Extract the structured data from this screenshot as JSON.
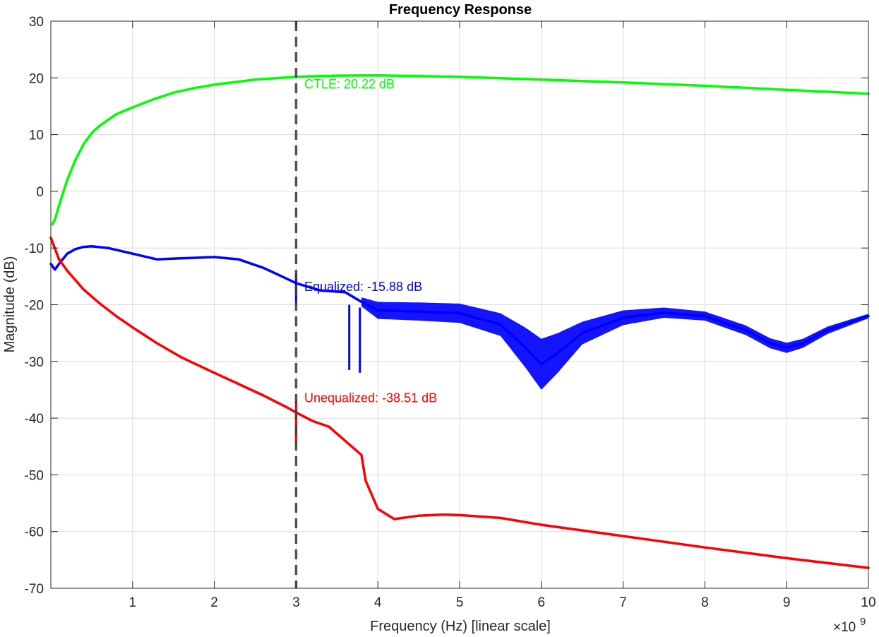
{
  "chart_data": {
    "type": "line",
    "title": "Frequency Response",
    "xlabel": "Frequency (Hz) [linear scale]",
    "ylabel": "Magnitude (dB)",
    "x_exponent_base": "×10",
    "x_exponent_power": "9",
    "xlim": [
      0,
      10
    ],
    "ylim": [
      -70,
      30
    ],
    "x_ticks": [
      1,
      2,
      3,
      4,
      5,
      6,
      7,
      8,
      9,
      10
    ],
    "x_tick_labels": [
      "1",
      "2",
      "3",
      "4",
      "5",
      "6",
      "7",
      "8",
      "9",
      "10"
    ],
    "y_ticks": [
      30,
      20,
      10,
      0,
      -10,
      -20,
      -30,
      -40,
      -50,
      -60,
      -70
    ],
    "y_tick_labels": [
      "30",
      "20",
      "10",
      "0",
      "-10",
      "-20",
      "-30",
      "-40",
      "-50",
      "-60",
      "-70"
    ],
    "grid": true,
    "reference_line": {
      "x": 3,
      "color": "#404040",
      "style": "dashed"
    },
    "series": [
      {
        "key": "ctle",
        "color": "#00ff00",
        "x": [
          0.02,
          0.05,
          0.1,
          0.2,
          0.3,
          0.4,
          0.5,
          0.6,
          0.8,
          1.0,
          1.25,
          1.5,
          1.75,
          2.0,
          2.5,
          3.0,
          3.5,
          4.0,
          5.0,
          6.0,
          7.0,
          8.0,
          9.0,
          10.0
        ],
        "y": [
          -5.8,
          -5.0,
          -2.5,
          2.0,
          5.5,
          8.3,
          10.3,
          11.6,
          13.6,
          14.8,
          16.2,
          17.4,
          18.2,
          18.8,
          19.7,
          20.2,
          20.4,
          20.45,
          20.2,
          19.7,
          19.2,
          18.6,
          17.9,
          17.2
        ]
      },
      {
        "key": "equalized",
        "color": "#0000ff",
        "x": [
          0.0,
          0.05,
          0.1,
          0.2,
          0.3,
          0.4,
          0.5,
          0.7,
          1.0,
          1.3,
          1.6,
          2.0,
          2.3,
          2.6,
          2.9,
          3.0,
          3.3,
          3.6,
          3.8,
          4.0,
          4.5,
          5.0,
          5.5,
          5.8,
          6.0,
          6.2,
          6.5,
          7.0,
          7.5,
          8.0,
          8.5,
          8.8,
          9.0,
          9.2,
          9.5,
          10.0
        ],
        "y": [
          -12.8,
          -13.8,
          -12.8,
          -11.0,
          -10.2,
          -9.8,
          -9.7,
          -10.0,
          -11.0,
          -12.0,
          -11.8,
          -11.6,
          -12.0,
          -13.5,
          -15.5,
          -16.2,
          -17.5,
          -17.8,
          -19.5,
          -21.0,
          -21.2,
          -21.5,
          -23.5,
          -27.5,
          -30.5,
          -28.5,
          -25.0,
          -22.3,
          -21.4,
          -22.0,
          -24.5,
          -26.8,
          -27.6,
          -26.8,
          -24.5,
          -22.0
        ]
      },
      {
        "key": "unequalized",
        "color": "#ff0000",
        "x": [
          0.0,
          0.1,
          0.2,
          0.4,
          0.6,
          0.8,
          1.0,
          1.3,
          1.6,
          2.0,
          2.3,
          2.6,
          2.9,
          3.0,
          3.2,
          3.4,
          3.6,
          3.8,
          3.85,
          4.0,
          4.2,
          4.5,
          4.8,
          5.0,
          5.5,
          6.0,
          7.0,
          8.0,
          9.0,
          10.0
        ],
        "y": [
          -8.2,
          -12.0,
          -14.0,
          -17.3,
          -19.8,
          -22.0,
          -24.0,
          -26.8,
          -29.3,
          -32.0,
          -34.0,
          -36.0,
          -38.2,
          -39.0,
          -40.5,
          -41.5,
          -44.0,
          -46.5,
          -51.0,
          -56.0,
          -57.8,
          -57.2,
          -57.0,
          -57.1,
          -57.6,
          -58.8,
          -60.8,
          -62.8,
          -64.7,
          -66.4
        ]
      }
    ],
    "annotations": [
      {
        "key": "ctle",
        "text": "CTLE: 20.22 dB",
        "x": 3.1,
        "y": 18.2,
        "color": "#00ff00"
      },
      {
        "key": "equalized",
        "text": "Equalized: -15.88 dB",
        "x": 3.1,
        "y": -17.6,
        "color": "#0000ff"
      },
      {
        "key": "unequalized",
        "text": "Unequalized: -38.51 dB",
        "x": 3.1,
        "y": -37.2,
        "color": "#ff0000"
      }
    ],
    "spikes": [
      {
        "key": "equalized",
        "x": 3.0,
        "y_top": -14.5,
        "y_bottom": -19.8
      },
      {
        "key": "equalized",
        "x": 3.65,
        "y_top": -20.0,
        "y_bottom": -31.5
      },
      {
        "key": "equalized",
        "x": 3.78,
        "y_top": -20.5,
        "y_bottom": -32.0
      },
      {
        "key": "unequalized",
        "x": 3.0,
        "y_top": -37.0,
        "y_bottom": -44.5
      }
    ],
    "ripple_band": [
      {
        "x": 3.8,
        "half_width": 0.8
      },
      {
        "x": 4.0,
        "half_width": 1.5
      },
      {
        "x": 4.5,
        "half_width": 1.6
      },
      {
        "x": 5.0,
        "half_width": 1.7
      },
      {
        "x": 5.5,
        "half_width": 2.0
      },
      {
        "x": 6.0,
        "half_width": 4.5
      },
      {
        "x": 6.5,
        "half_width": 2.0
      },
      {
        "x": 7.0,
        "half_width": 1.3
      },
      {
        "x": 7.5,
        "half_width": 0.9
      },
      {
        "x": 8.0,
        "half_width": 0.8
      },
      {
        "x": 9.0,
        "half_width": 0.9
      },
      {
        "x": 10.0,
        "half_width": 0.4
      }
    ]
  }
}
